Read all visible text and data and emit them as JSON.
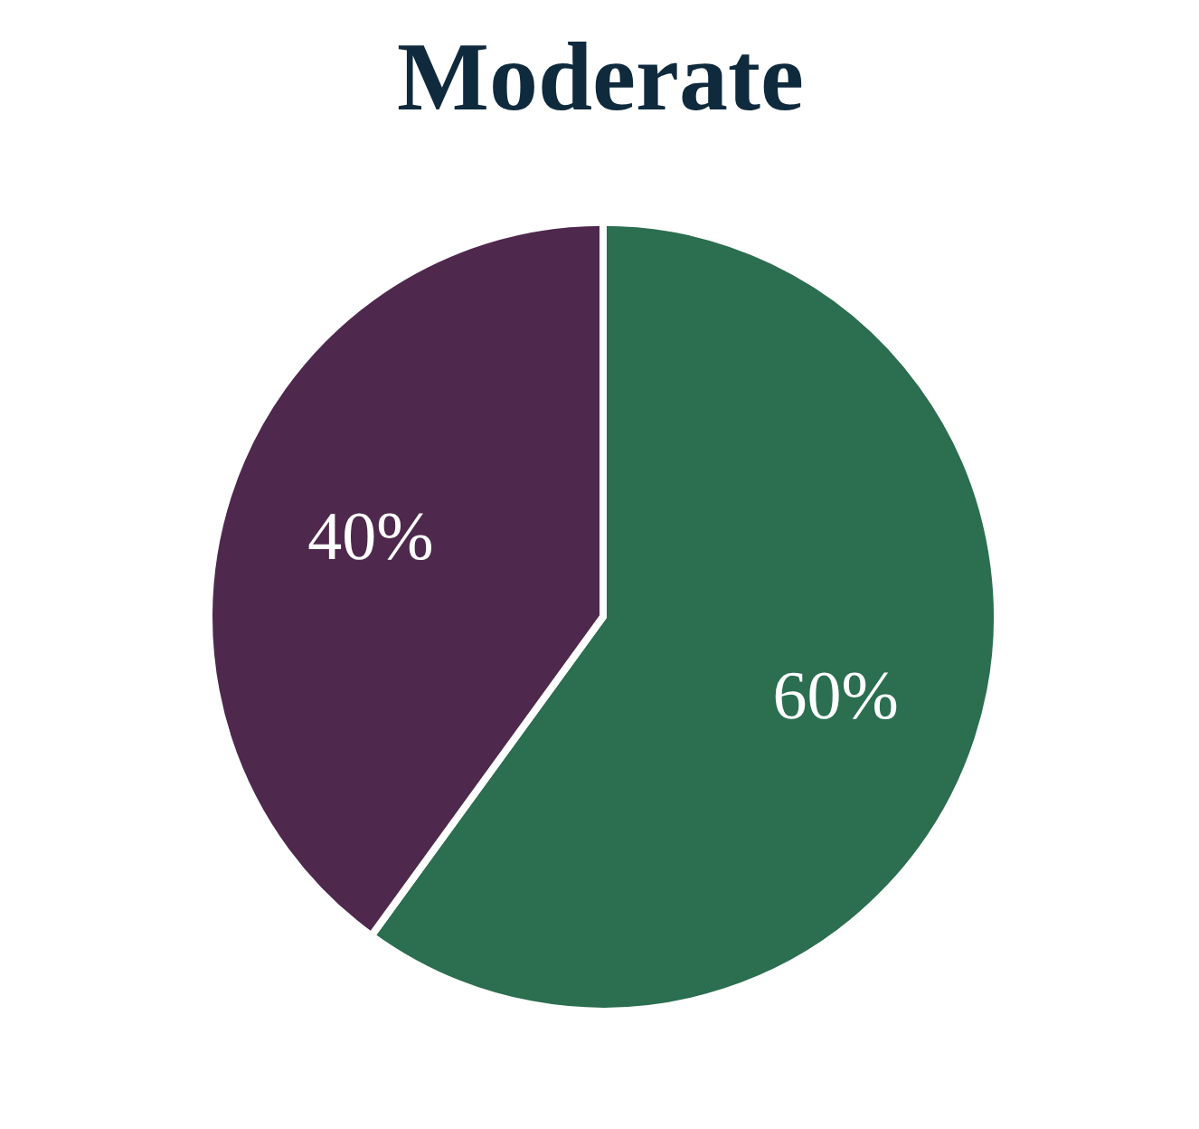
{
  "chart_data": {
    "type": "pie",
    "title": "Moderate",
    "categories": [
      null,
      null
    ],
    "values": [
      60,
      40
    ],
    "colors": [
      "#2b6e50",
      "#4f284d"
    ],
    "value_labels": [
      "60%",
      "40%"
    ]
  }
}
